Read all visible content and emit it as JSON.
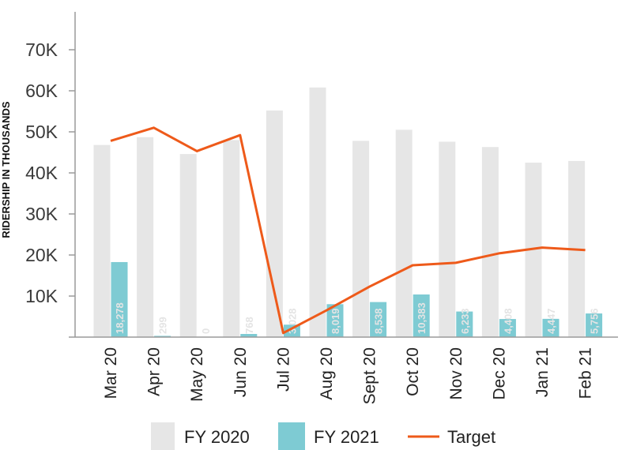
{
  "chart_data": {
    "type": "bar",
    "ylabel": "RIDERSHIP IN THOUSANDS",
    "ylim": [
      0,
      70000
    ],
    "yticks": [
      {
        "value": 10000,
        "label": "10K"
      },
      {
        "value": 20000,
        "label": "20K"
      },
      {
        "value": 30000,
        "label": "30K"
      },
      {
        "value": 40000,
        "label": "40K"
      },
      {
        "value": 50000,
        "label": "50K"
      },
      {
        "value": 60000,
        "label": "60K"
      },
      {
        "value": 70000,
        "label": "70K"
      }
    ],
    "categories": [
      "Mar 20",
      "Apr 20",
      "May 20",
      "Jun 20",
      "Jul 20",
      "Aug 20",
      "Sept 20",
      "Oct 20",
      "Nov 20",
      "Dec 20",
      "Jan 21",
      "Feb 21"
    ],
    "series": [
      {
        "name": "FY 2020",
        "kind": "bar",
        "values": [
          46800,
          48700,
          44600,
          48000,
          55200,
          60800,
          47800,
          50500,
          47600,
          46300,
          42500,
          42900
        ]
      },
      {
        "name": "FY 2021",
        "kind": "bar",
        "values": [
          18278,
          299,
          0,
          768,
          3028,
          8019,
          8538,
          10383,
          6233,
          4408,
          4447,
          5756
        ],
        "labels": [
          "18,278",
          "299",
          "0",
          "768",
          "3,028",
          "8,019",
          "8,538",
          "10,383",
          "6,233",
          "4,408",
          "4,447",
          "5,756"
        ]
      },
      {
        "name": "Target",
        "kind": "line",
        "values": [
          47800,
          51000,
          45300,
          49200,
          1000,
          6500,
          12300,
          17500,
          18100,
          20400,
          21800,
          21200
        ]
      }
    ],
    "legend_position": "bottom",
    "grid": false,
    "colors": {
      "fy2020": "#e6e6e6",
      "fy2021": "#7ecbd3",
      "target": "#ee5a1a",
      "axis": "#9a9a9a"
    }
  }
}
